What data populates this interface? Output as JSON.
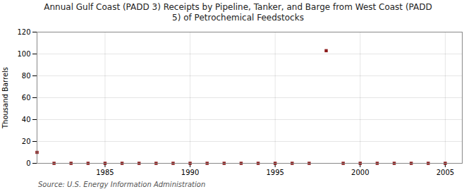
{
  "chart_data": {
    "type": "scatter",
    "title": "Annual Gulf Coast (PADD 3) Receipts by Pipeline, Tanker, and Barge from West Coast (PADD\n5) of Petrochemical Feedstocks",
    "ylabel": "Thousand Barrels",
    "source": "Source: U.S. Energy Information Administration",
    "x": [
      1981,
      1982,
      1983,
      1984,
      1985,
      1986,
      1987,
      1988,
      1989,
      1990,
      1991,
      1992,
      1993,
      1994,
      1995,
      1996,
      1997,
      1998,
      1999,
      2000,
      2001,
      2002,
      2003,
      2004,
      2005
    ],
    "values": [
      10,
      0,
      0,
      0,
      0,
      0,
      0,
      0,
      0,
      0,
      0,
      0,
      0,
      0,
      0,
      0,
      0,
      103,
      0,
      0,
      0,
      0,
      0,
      0,
      0
    ],
    "color": "#8b1a1a",
    "marker": "square",
    "xlim": [
      1981,
      2006
    ],
    "xticks": [
      1985,
      1990,
      1995,
      2000,
      2005
    ],
    "ylim": [
      0,
      120
    ],
    "yticks": [
      0,
      20,
      40,
      60,
      80,
      100,
      120
    ],
    "grid": true
  }
}
